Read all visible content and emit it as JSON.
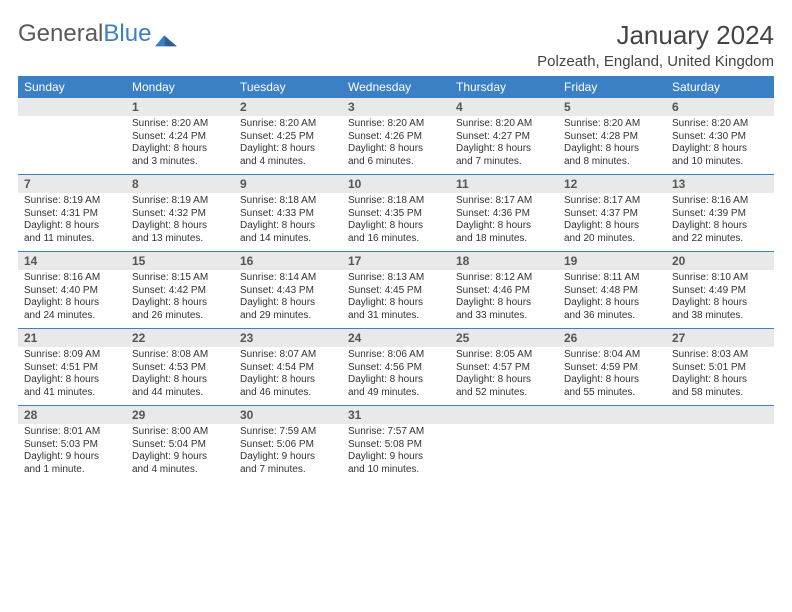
{
  "logo": {
    "part1": "General",
    "part2": "Blue"
  },
  "title": "January 2024",
  "location": "Polzeath, England, United Kingdom",
  "colors": {
    "header_bg": "#3b7fc4",
    "header_text": "#ffffff",
    "daynum_bg": "#e9e9e9",
    "border": "#3b7fc4",
    "text": "#333333"
  },
  "day_headers": [
    "Sunday",
    "Monday",
    "Tuesday",
    "Wednesday",
    "Thursday",
    "Friday",
    "Saturday"
  ],
  "weeks": [
    [
      {
        "day": "",
        "lines": []
      },
      {
        "day": "1",
        "lines": [
          "Sunrise: 8:20 AM",
          "Sunset: 4:24 PM",
          "Daylight: 8 hours",
          "and 3 minutes."
        ]
      },
      {
        "day": "2",
        "lines": [
          "Sunrise: 8:20 AM",
          "Sunset: 4:25 PM",
          "Daylight: 8 hours",
          "and 4 minutes."
        ]
      },
      {
        "day": "3",
        "lines": [
          "Sunrise: 8:20 AM",
          "Sunset: 4:26 PM",
          "Daylight: 8 hours",
          "and 6 minutes."
        ]
      },
      {
        "day": "4",
        "lines": [
          "Sunrise: 8:20 AM",
          "Sunset: 4:27 PM",
          "Daylight: 8 hours",
          "and 7 minutes."
        ]
      },
      {
        "day": "5",
        "lines": [
          "Sunrise: 8:20 AM",
          "Sunset: 4:28 PM",
          "Daylight: 8 hours",
          "and 8 minutes."
        ]
      },
      {
        "day": "6",
        "lines": [
          "Sunrise: 8:20 AM",
          "Sunset: 4:30 PM",
          "Daylight: 8 hours",
          "and 10 minutes."
        ]
      }
    ],
    [
      {
        "day": "7",
        "lines": [
          "Sunrise: 8:19 AM",
          "Sunset: 4:31 PM",
          "Daylight: 8 hours",
          "and 11 minutes."
        ]
      },
      {
        "day": "8",
        "lines": [
          "Sunrise: 8:19 AM",
          "Sunset: 4:32 PM",
          "Daylight: 8 hours",
          "and 13 minutes."
        ]
      },
      {
        "day": "9",
        "lines": [
          "Sunrise: 8:18 AM",
          "Sunset: 4:33 PM",
          "Daylight: 8 hours",
          "and 14 minutes."
        ]
      },
      {
        "day": "10",
        "lines": [
          "Sunrise: 8:18 AM",
          "Sunset: 4:35 PM",
          "Daylight: 8 hours",
          "and 16 minutes."
        ]
      },
      {
        "day": "11",
        "lines": [
          "Sunrise: 8:17 AM",
          "Sunset: 4:36 PM",
          "Daylight: 8 hours",
          "and 18 minutes."
        ]
      },
      {
        "day": "12",
        "lines": [
          "Sunrise: 8:17 AM",
          "Sunset: 4:37 PM",
          "Daylight: 8 hours",
          "and 20 minutes."
        ]
      },
      {
        "day": "13",
        "lines": [
          "Sunrise: 8:16 AM",
          "Sunset: 4:39 PM",
          "Daylight: 8 hours",
          "and 22 minutes."
        ]
      }
    ],
    [
      {
        "day": "14",
        "lines": [
          "Sunrise: 8:16 AM",
          "Sunset: 4:40 PM",
          "Daylight: 8 hours",
          "and 24 minutes."
        ]
      },
      {
        "day": "15",
        "lines": [
          "Sunrise: 8:15 AM",
          "Sunset: 4:42 PM",
          "Daylight: 8 hours",
          "and 26 minutes."
        ]
      },
      {
        "day": "16",
        "lines": [
          "Sunrise: 8:14 AM",
          "Sunset: 4:43 PM",
          "Daylight: 8 hours",
          "and 29 minutes."
        ]
      },
      {
        "day": "17",
        "lines": [
          "Sunrise: 8:13 AM",
          "Sunset: 4:45 PM",
          "Daylight: 8 hours",
          "and 31 minutes."
        ]
      },
      {
        "day": "18",
        "lines": [
          "Sunrise: 8:12 AM",
          "Sunset: 4:46 PM",
          "Daylight: 8 hours",
          "and 33 minutes."
        ]
      },
      {
        "day": "19",
        "lines": [
          "Sunrise: 8:11 AM",
          "Sunset: 4:48 PM",
          "Daylight: 8 hours",
          "and 36 minutes."
        ]
      },
      {
        "day": "20",
        "lines": [
          "Sunrise: 8:10 AM",
          "Sunset: 4:49 PM",
          "Daylight: 8 hours",
          "and 38 minutes."
        ]
      }
    ],
    [
      {
        "day": "21",
        "lines": [
          "Sunrise: 8:09 AM",
          "Sunset: 4:51 PM",
          "Daylight: 8 hours",
          "and 41 minutes."
        ]
      },
      {
        "day": "22",
        "lines": [
          "Sunrise: 8:08 AM",
          "Sunset: 4:53 PM",
          "Daylight: 8 hours",
          "and 44 minutes."
        ]
      },
      {
        "day": "23",
        "lines": [
          "Sunrise: 8:07 AM",
          "Sunset: 4:54 PM",
          "Daylight: 8 hours",
          "and 46 minutes."
        ]
      },
      {
        "day": "24",
        "lines": [
          "Sunrise: 8:06 AM",
          "Sunset: 4:56 PM",
          "Daylight: 8 hours",
          "and 49 minutes."
        ]
      },
      {
        "day": "25",
        "lines": [
          "Sunrise: 8:05 AM",
          "Sunset: 4:57 PM",
          "Daylight: 8 hours",
          "and 52 minutes."
        ]
      },
      {
        "day": "26",
        "lines": [
          "Sunrise: 8:04 AM",
          "Sunset: 4:59 PM",
          "Daylight: 8 hours",
          "and 55 minutes."
        ]
      },
      {
        "day": "27",
        "lines": [
          "Sunrise: 8:03 AM",
          "Sunset: 5:01 PM",
          "Daylight: 8 hours",
          "and 58 minutes."
        ]
      }
    ],
    [
      {
        "day": "28",
        "lines": [
          "Sunrise: 8:01 AM",
          "Sunset: 5:03 PM",
          "Daylight: 9 hours",
          "and 1 minute."
        ]
      },
      {
        "day": "29",
        "lines": [
          "Sunrise: 8:00 AM",
          "Sunset: 5:04 PM",
          "Daylight: 9 hours",
          "and 4 minutes."
        ]
      },
      {
        "day": "30",
        "lines": [
          "Sunrise: 7:59 AM",
          "Sunset: 5:06 PM",
          "Daylight: 9 hours",
          "and 7 minutes."
        ]
      },
      {
        "day": "31",
        "lines": [
          "Sunrise: 7:57 AM",
          "Sunset: 5:08 PM",
          "Daylight: 9 hours",
          "and 10 minutes."
        ]
      },
      {
        "day": "",
        "lines": []
      },
      {
        "day": "",
        "lines": []
      },
      {
        "day": "",
        "lines": []
      }
    ]
  ]
}
